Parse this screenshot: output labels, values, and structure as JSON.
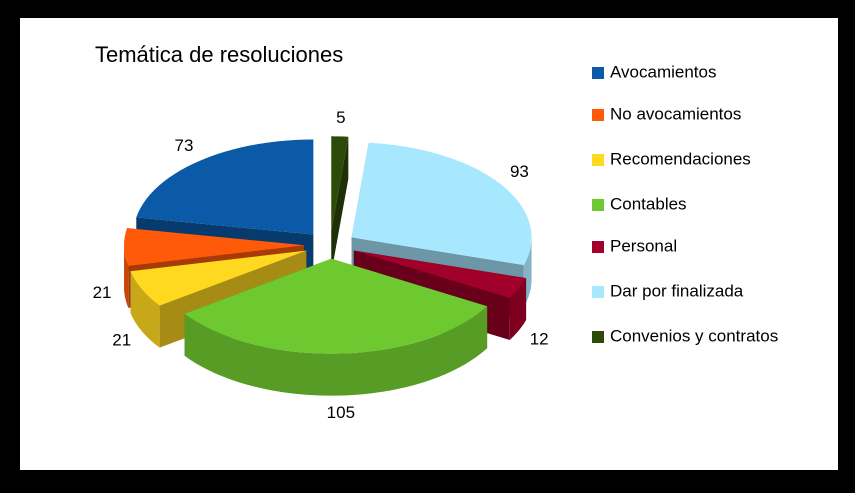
{
  "chart_data": {
    "type": "pie",
    "title": "Temática de resoluciones",
    "categories": [
      "Avocamientos",
      "No avocamientos",
      "Recomendaciones",
      "Contables",
      "Personal",
      "Dar por finalizada",
      "Convenios y contratos"
    ],
    "values": [
      73,
      21,
      21,
      105,
      12,
      93,
      5
    ],
    "colors": [
      "#0a5aa8",
      "#ff5a0a",
      "#ffd820",
      "#6ec830",
      "#a0002a",
      "#a8e8ff",
      "#2e4a08"
    ]
  }
}
